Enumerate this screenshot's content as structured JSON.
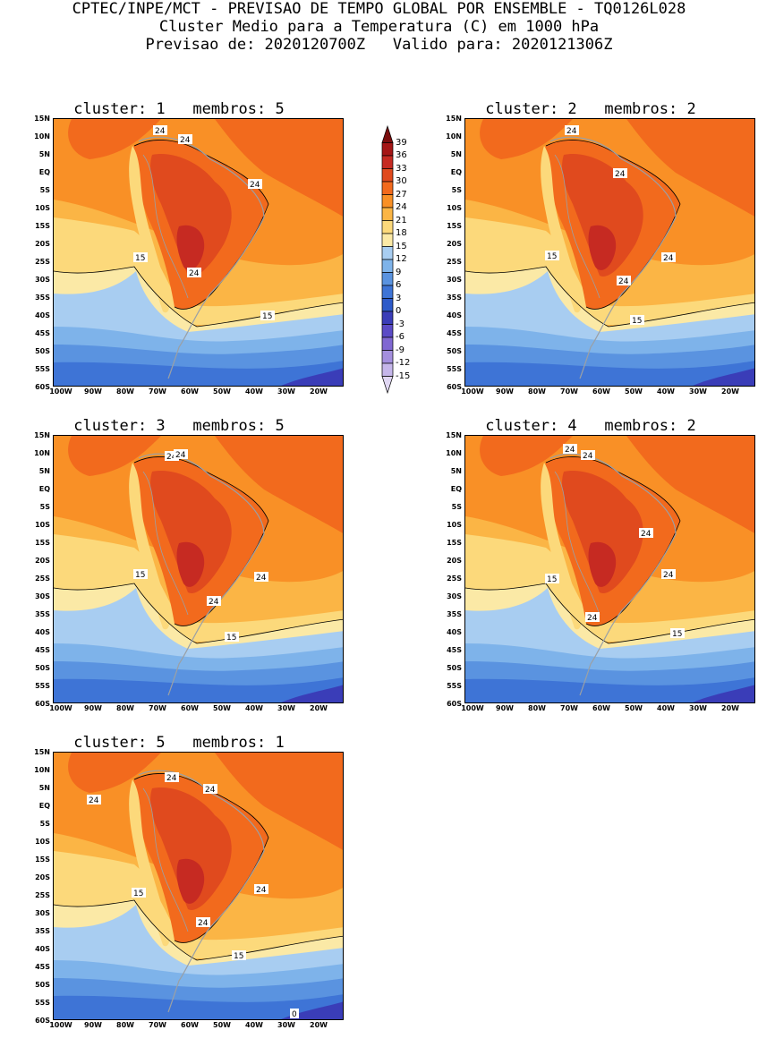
{
  "header": {
    "line1": "CPTEC/INPE/MCT - PREVISAO DE TEMPO GLOBAL POR ENSEMBLE - TQ0126L028",
    "line2": "Cluster Medio para a Temperatura (C) em 1000 hPa",
    "line3": "Previsao de: 2020120700Z   Valido para: 2020121306Z"
  },
  "lat_labels": [
    "15N",
    "10N",
    "5N",
    "EQ",
    "5S",
    "10S",
    "15S",
    "20S",
    "25S",
    "30S",
    "35S",
    "40S",
    "45S",
    "50S",
    "55S",
    "60S"
  ],
  "lon_labels": [
    "100W",
    "90W",
    "80W",
    "70W",
    "60W",
    "50W",
    "40W",
    "30W",
    "20W"
  ],
  "colorbar": {
    "levels": [
      "39",
      "36",
      "33",
      "30",
      "27",
      "24",
      "21",
      "18",
      "15",
      "12",
      "9",
      "6",
      "3",
      "0",
      "-3",
      "-6",
      "-9",
      "-12",
      "-15"
    ],
    "colors": [
      "#7a0d0d",
      "#a51616",
      "#c62a22",
      "#e04a1e",
      "#f26a1d",
      "#f99026",
      "#fbb545",
      "#fcd97b",
      "#fbe9a6",
      "#a8cdf1",
      "#7eb3ea",
      "#5a93e0",
      "#3e74d6",
      "#2d5ac9",
      "#3a3db8",
      "#5b4bc6",
      "#8068d2",
      "#a48fde",
      "#c5b6ea",
      "#e0d7f3"
    ]
  },
  "panels": [
    {
      "title": "cluster: 1   membros: 5",
      "labels": [
        {
          "t": "24",
          "x": 112,
          "y": 8
        },
        {
          "t": "24",
          "x": 140,
          "y": 18
        },
        {
          "t": "24",
          "x": 218,
          "y": 68
        },
        {
          "t": "15",
          "x": 90,
          "y": 150
        },
        {
          "t": "24",
          "x": 150,
          "y": 167
        },
        {
          "t": "15",
          "x": 232,
          "y": 215
        }
      ]
    },
    {
      "title": "cluster: 2   membros: 2",
      "labels": [
        {
          "t": "24",
          "x": 112,
          "y": 8
        },
        {
          "t": "24",
          "x": 166,
          "y": 56
        },
        {
          "t": "15",
          "x": 90,
          "y": 148
        },
        {
          "t": "24",
          "x": 220,
          "y": 150
        },
        {
          "t": "24",
          "x": 170,
          "y": 176
        },
        {
          "t": "15",
          "x": 185,
          "y": 220
        }
      ]
    },
    {
      "title": "cluster: 3   membros: 5",
      "labels": [
        {
          "t": "24",
          "x": 125,
          "y": 18
        },
        {
          "t": "24",
          "x": 135,
          "y": 16
        },
        {
          "t": "15",
          "x": 90,
          "y": 150
        },
        {
          "t": "24",
          "x": 225,
          "y": 153
        },
        {
          "t": "24",
          "x": 172,
          "y": 180
        },
        {
          "t": "15",
          "x": 192,
          "y": 220
        }
      ]
    },
    {
      "title": "cluster: 4   membros: 2",
      "labels": [
        {
          "t": "24",
          "x": 110,
          "y": 10
        },
        {
          "t": "24",
          "x": 130,
          "y": 17
        },
        {
          "t": "24",
          "x": 195,
          "y": 104
        },
        {
          "t": "24",
          "x": 220,
          "y": 150
        },
        {
          "t": "15",
          "x": 90,
          "y": 155
        },
        {
          "t": "24",
          "x": 135,
          "y": 198
        },
        {
          "t": "15",
          "x": 230,
          "y": 216
        }
      ]
    },
    {
      "title": "cluster: 5   membros: 1",
      "labels": [
        {
          "t": "24",
          "x": 38,
          "y": 48
        },
        {
          "t": "24",
          "x": 125,
          "y": 23
        },
        {
          "t": "24",
          "x": 168,
          "y": 36
        },
        {
          "t": "24",
          "x": 225,
          "y": 148
        },
        {
          "t": "15",
          "x": 88,
          "y": 152
        },
        {
          "t": "24",
          "x": 160,
          "y": 185
        },
        {
          "t": "15",
          "x": 200,
          "y": 222
        },
        {
          "t": "0",
          "x": 265,
          "y": 287
        }
      ]
    }
  ]
}
